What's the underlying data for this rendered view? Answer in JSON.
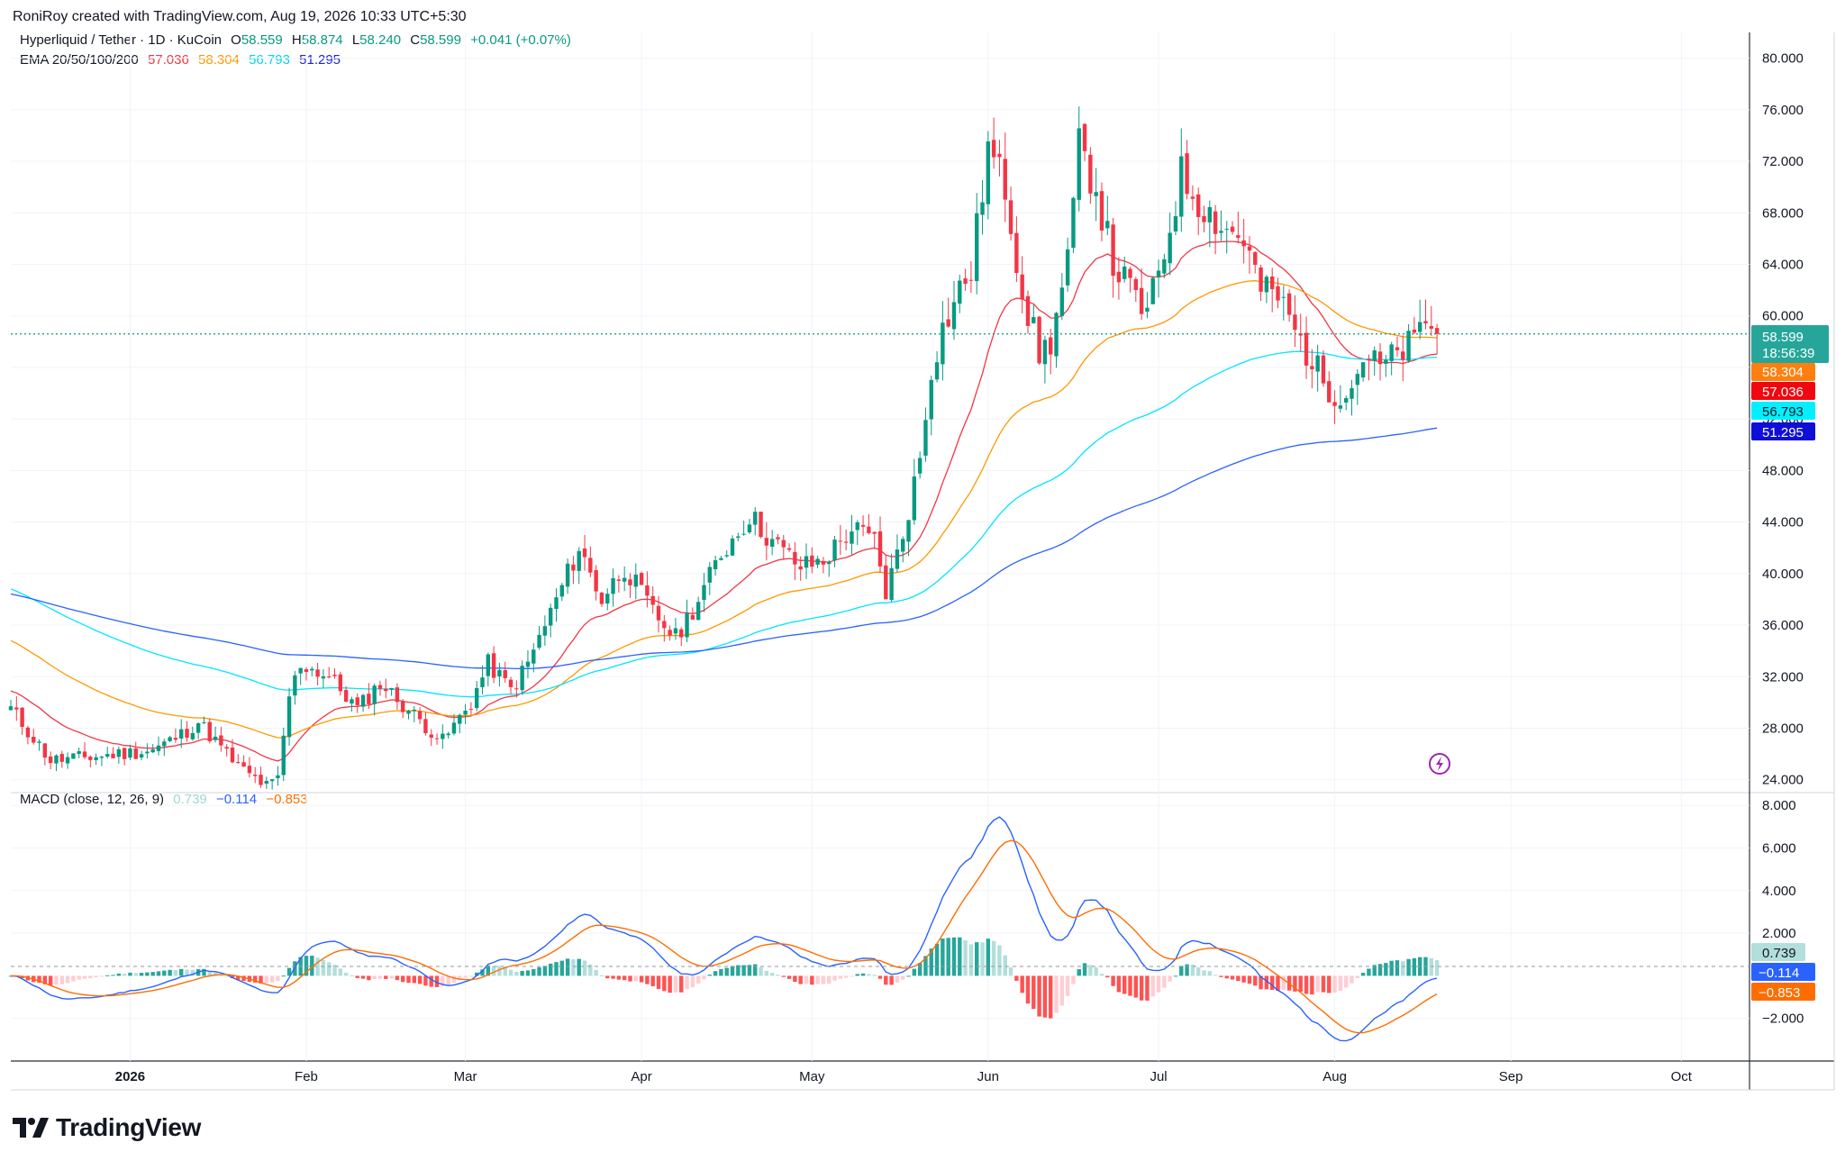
{
  "header": {
    "published_by": "RoniRoy created with TradingView.com, Aug 19, 2026 10:33 UTC+5:30"
  },
  "symbol_legend": {
    "title": "Hyperliquid / Tether · 1D · KuCoin",
    "o_label": "O",
    "o_value": "58.559",
    "h_label": "H",
    "h_value": "58.874",
    "l_label": "L",
    "l_value": "58.240",
    "c_label": "C",
    "c_value": "58.599",
    "change": "+0.041 (+0.07%)",
    "up_color": "#089981"
  },
  "ema_legend": {
    "label": "EMA 20/50/100/200",
    "ema20": "57.036",
    "ema50": "58.304",
    "ema100": "56.793",
    "ema200": "51.295"
  },
  "macd_legend": {
    "label": "MACD (close, 12, 26, 9)",
    "hist": "0.739",
    "macd": "−0.114",
    "signal": "−0.853"
  },
  "price_tags": {
    "last": "58.599",
    "countdown": "18:56:39",
    "ema50": "58.304",
    "ema20": "57.036",
    "ema100": "56.793",
    "ema200": "51.295"
  },
  "macd_tags": {
    "hist": "0.739",
    "macd": "−0.114",
    "signal": "−0.853"
  },
  "colors": {
    "up": "#089981",
    "down": "#f23645",
    "ema20": "#f23645",
    "ema50": "#ff9800",
    "ema100": "#00e5ff",
    "ema200": "#2962ff",
    "macd": "#2962ff",
    "signal": "#ff6d00",
    "hist_up_strong": "#26a69a",
    "hist_up_weak": "#b2dfdb",
    "hist_down_strong": "#ff5252",
    "hist_down_weak": "#ffcdd2"
  },
  "footer": {
    "brand": "TradingView"
  },
  "chart_data": [
    {
      "type": "candlestick",
      "title": "Hyperliquid / Tether · 1D · KuCoin",
      "x_ticks": [
        "2026",
        "Feb",
        "Mar",
        "Apr",
        "May",
        "Jun",
        "Jul",
        "Aug",
        "Sep",
        "Oct"
      ],
      "y_ticks": [
        "24.000",
        "28.000",
        "32.000",
        "36.000",
        "40.000",
        "44.000",
        "48.000",
        "52.000",
        "56.000",
        "60.000",
        "64.000",
        "68.000",
        "72.000",
        "76.000",
        "80.000"
      ],
      "ylim": [
        23,
        82
      ],
      "x_range_days": [
        "2025-12-11",
        "2026-10-13"
      ],
      "keypoints_close": [
        {
          "date": "2025-12-11",
          "price": 29.5
        },
        {
          "date": "2025-12-18",
          "price": 25.5
        },
        {
          "date": "2025-12-26",
          "price": 25.8
        },
        {
          "date": "2026-01-05",
          "price": 26.3
        },
        {
          "date": "2026-01-10",
          "price": 27.5
        },
        {
          "date": "2026-01-13",
          "price": 28.5
        },
        {
          "date": "2026-01-20",
          "price": 25.0
        },
        {
          "date": "2026-01-25",
          "price": 23.5
        },
        {
          "date": "2026-01-27",
          "price": 24.0
        },
        {
          "date": "2026-01-29",
          "price": 30.5
        },
        {
          "date": "2026-01-31",
          "price": 33.0
        },
        {
          "date": "2026-02-05",
          "price": 32.0
        },
        {
          "date": "2026-02-10",
          "price": 29.5
        },
        {
          "date": "2026-02-14",
          "price": 31.5
        },
        {
          "date": "2026-02-20",
          "price": 29.0
        },
        {
          "date": "2026-02-25",
          "price": 27.0
        },
        {
          "date": "2026-03-02",
          "price": 30.0
        },
        {
          "date": "2026-03-05",
          "price": 33.0
        },
        {
          "date": "2026-03-09",
          "price": 31.0
        },
        {
          "date": "2026-03-12",
          "price": 33.0
        },
        {
          "date": "2026-03-17",
          "price": 38.0
        },
        {
          "date": "2026-03-21",
          "price": 42.0
        },
        {
          "date": "2026-03-25",
          "price": 38.0
        },
        {
          "date": "2026-03-29",
          "price": 40.5
        },
        {
          "date": "2026-04-03",
          "price": 37.0
        },
        {
          "date": "2026-04-07",
          "price": 35.0
        },
        {
          "date": "2026-04-11",
          "price": 38.0
        },
        {
          "date": "2026-04-15",
          "price": 41.5
        },
        {
          "date": "2026-04-20",
          "price": 44.5
        },
        {
          "date": "2026-04-24",
          "price": 42.5
        },
        {
          "date": "2026-04-29",
          "price": 40.5
        },
        {
          "date": "2026-05-03",
          "price": 41.0
        },
        {
          "date": "2026-05-08",
          "price": 43.5
        },
        {
          "date": "2026-05-12",
          "price": 42.5
        },
        {
          "date": "2026-05-14",
          "price": 38.5
        },
        {
          "date": "2026-05-17",
          "price": 43.0
        },
        {
          "date": "2026-05-20",
          "price": 49.0
        },
        {
          "date": "2026-05-22",
          "price": 56.0
        },
        {
          "date": "2026-05-24",
          "price": 59.0
        },
        {
          "date": "2026-05-27",
          "price": 62.0
        },
        {
          "date": "2026-05-29",
          "price": 63.5
        },
        {
          "date": "2026-06-01",
          "price": 73.0
        },
        {
          "date": "2026-06-04",
          "price": 70.0
        },
        {
          "date": "2026-06-07",
          "price": 62.0
        },
        {
          "date": "2026-06-10",
          "price": 57.0
        },
        {
          "date": "2026-06-12",
          "price": 58.0
        },
        {
          "date": "2026-06-15",
          "price": 64.0
        },
        {
          "date": "2026-06-17",
          "price": 73.0
        },
        {
          "date": "2026-06-20",
          "price": 70.0
        },
        {
          "date": "2026-06-23",
          "price": 64.0
        },
        {
          "date": "2026-06-26",
          "price": 62.0
        },
        {
          "date": "2026-06-29",
          "price": 60.0
        },
        {
          "date": "2026-07-02",
          "price": 65.0
        },
        {
          "date": "2026-07-05",
          "price": 71.0
        },
        {
          "date": "2026-07-08",
          "price": 69.0
        },
        {
          "date": "2026-07-12",
          "price": 67.0
        },
        {
          "date": "2026-07-16",
          "price": 66.0
        },
        {
          "date": "2026-07-19",
          "price": 62.0
        },
        {
          "date": "2026-07-22",
          "price": 61.5
        },
        {
          "date": "2026-07-26",
          "price": 58.0
        },
        {
          "date": "2026-07-30",
          "price": 55.0
        },
        {
          "date": "2026-08-01",
          "price": 54.0
        },
        {
          "date": "2026-08-04",
          "price": 54.5
        },
        {
          "date": "2026-08-06",
          "price": 57.0
        },
        {
          "date": "2026-08-09",
          "price": 56.0
        },
        {
          "date": "2026-08-12",
          "price": 57.0
        },
        {
          "date": "2026-08-15",
          "price": 58.0
        },
        {
          "date": "2026-08-17",
          "price": 59.8
        },
        {
          "date": "2026-08-19",
          "price": 58.599
        }
      ],
      "ema_series": [
        {
          "name": "EMA 20",
          "color": "#f23645",
          "last": 57.036
        },
        {
          "name": "EMA 50",
          "color": "#ff9800",
          "last": 58.304
        },
        {
          "name": "EMA 100",
          "color": "#00e5ff",
          "last": 56.793
        },
        {
          "name": "EMA 200",
          "color": "#2962ff",
          "last": 51.295
        }
      ]
    },
    {
      "type": "line",
      "title": "MACD (close, 12, 26, 9)",
      "y_ticks": [
        "−2.000",
        "2.000",
        "4.000",
        "6.000",
        "8.000"
      ],
      "ylim": [
        -4,
        8.6
      ],
      "last_values": {
        "histogram": 0.739,
        "macd": -0.114,
        "signal": -0.853
      }
    }
  ]
}
